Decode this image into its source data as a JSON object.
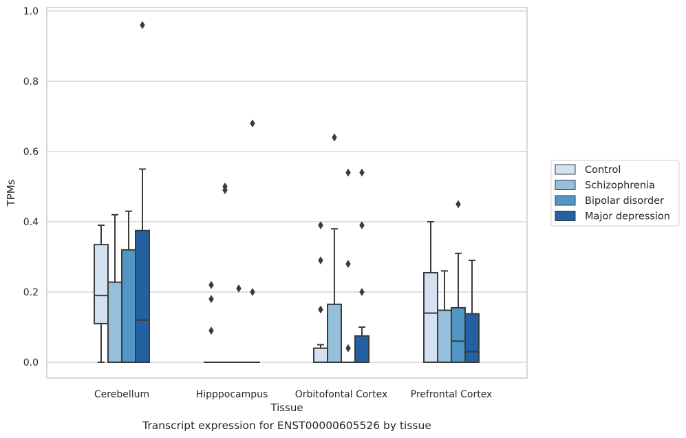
{
  "chart_data": {
    "type": "box",
    "title": "",
    "caption": "Transcript expression for ENST00000605526 by tissue",
    "xlabel": "Tissue",
    "ylabel": "TPMs",
    "ylim": [
      -0.045,
      1.01
    ],
    "yticks": [
      0.0,
      0.2,
      0.4,
      0.6,
      0.8,
      1.0
    ],
    "ytick_labels": [
      "0.0",
      "0.2",
      "0.4",
      "0.6",
      "0.8",
      "1.0"
    ],
    "grid": "horizontal",
    "legend_position": "right",
    "categories": [
      "Cerebellum",
      "Hipppocampus",
      "Orbitofontal Cortex",
      "Prefrontal Cortex"
    ],
    "series": [
      {
        "name": "Control",
        "color": "#d3e1f0",
        "boxes": [
          {
            "whislo": 0.0,
            "q1": 0.11,
            "med": 0.19,
            "q3": 0.335,
            "whishi": 0.39,
            "fliers": []
          },
          {
            "whislo": 0.0,
            "q1": 0.0,
            "med": 0.0,
            "q3": 0.0,
            "whishi": 0.0,
            "fliers": [
              0.09,
              0.18,
              0.22
            ]
          },
          {
            "whislo": 0.0,
            "q1": 0.0,
            "med": 0.0,
            "q3": 0.04,
            "whishi": 0.05,
            "fliers": [
              0.15,
              0.29,
              0.39
            ]
          },
          {
            "whislo": 0.0,
            "q1": 0.0,
            "med": 0.14,
            "q3": 0.255,
            "whishi": 0.4,
            "fliers": []
          }
        ]
      },
      {
        "name": "Schizophrenia",
        "color": "#95bfdb",
        "boxes": [
          {
            "whislo": 0.0,
            "q1": 0.0,
            "med": 0.0,
            "q3": 0.228,
            "whishi": 0.42,
            "fliers": []
          },
          {
            "whislo": 0.0,
            "q1": 0.0,
            "med": 0.0,
            "q3": 0.0,
            "whishi": 0.0,
            "fliers": [
              0.49,
              0.5
            ]
          },
          {
            "whislo": 0.0,
            "q1": 0.0,
            "med": 0.0,
            "q3": 0.165,
            "whishi": 0.38,
            "fliers": [
              0.64
            ]
          },
          {
            "whislo": 0.0,
            "q1": 0.0,
            "med": 0.0,
            "q3": 0.148,
            "whishi": 0.26,
            "fliers": []
          }
        ]
      },
      {
        "name": "Bipolar disorder",
        "color": "#5196c4",
        "boxes": [
          {
            "whislo": 0.0,
            "q1": 0.0,
            "med": 0.0,
            "q3": 0.32,
            "whishi": 0.43,
            "fliers": []
          },
          {
            "whislo": 0.0,
            "q1": 0.0,
            "med": 0.0,
            "q3": 0.0,
            "whishi": 0.0,
            "fliers": [
              0.21
            ]
          },
          {
            "whislo": 0.0,
            "q1": 0.0,
            "med": 0.0,
            "q3": 0.0,
            "whishi": 0.0,
            "fliers": [
              0.04,
              0.28,
              0.54
            ]
          },
          {
            "whislo": 0.0,
            "q1": 0.0,
            "med": 0.06,
            "q3": 0.155,
            "whishi": 0.31,
            "fliers": [
              0.45
            ]
          }
        ]
      },
      {
        "name": "Major depression",
        "color": "#2361a3",
        "boxes": [
          {
            "whislo": 0.0,
            "q1": 0.0,
            "med": 0.12,
            "q3": 0.375,
            "whishi": 0.55,
            "fliers": [
              0.96
            ]
          },
          {
            "whislo": 0.0,
            "q1": 0.0,
            "med": 0.0,
            "q3": 0.0,
            "whishi": 0.0,
            "fliers": [
              0.2,
              0.68
            ]
          },
          {
            "whislo": 0.0,
            "q1": 0.0,
            "med": 0.0,
            "q3": 0.075,
            "whishi": 0.1,
            "fliers": [
              0.2,
              0.39,
              0.54
            ]
          },
          {
            "whislo": 0.0,
            "q1": 0.0,
            "med": 0.03,
            "q3": 0.138,
            "whishi": 0.29,
            "fliers": []
          }
        ]
      }
    ]
  }
}
